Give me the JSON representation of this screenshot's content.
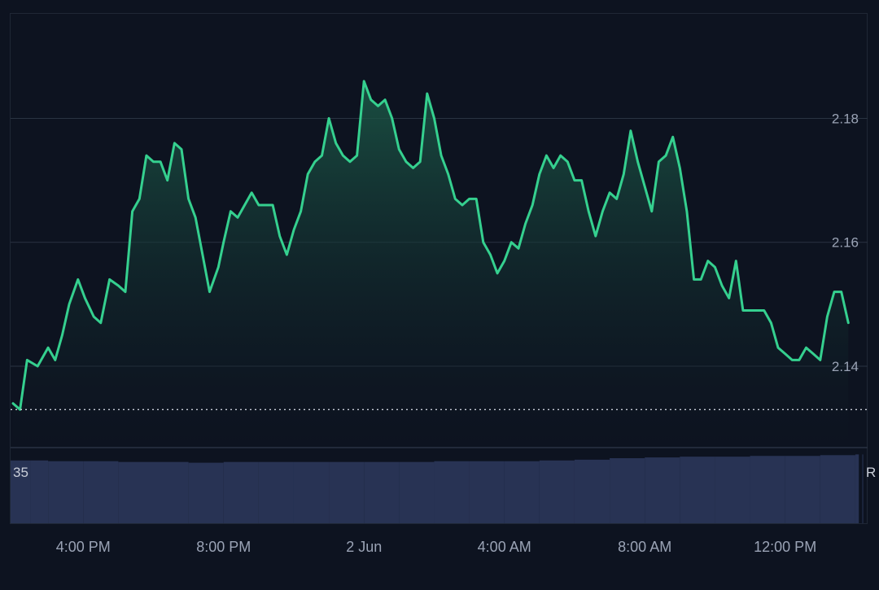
{
  "colors": {
    "background": "#0d1320",
    "line": "#35d08f",
    "area_top": "#1c5a48",
    "area_bottom": "#0d1320",
    "grid": "#2a3342",
    "volume": "#283354",
    "axis_text": "#9aa3b5",
    "baseline": "#c9ced8",
    "volume_label": "#c9ced8"
  },
  "chart_data": {
    "type": "area",
    "title": "",
    "xlabel": "",
    "ylabel": "",
    "ylim": [
      2.127,
      2.197
    ],
    "y_ticks": [
      2.14,
      2.16,
      2.18
    ],
    "y_tick_labels": [
      "2.14",
      "2.16",
      "2.18"
    ],
    "grid": true,
    "baseline_value": 2.133,
    "x_ticks": [
      {
        "hour": 4,
        "label": "4:00 PM"
      },
      {
        "hour": 8,
        "label": "8:00 PM"
      },
      {
        "hour": 12,
        "label": "2 Jun"
      },
      {
        "hour": 16,
        "label": "4:00 AM"
      },
      {
        "hour": 20,
        "label": "8:00 AM"
      },
      {
        "hour": 24,
        "label": "12:00 PM"
      }
    ],
    "x_range_hours": [
      1.93,
      26.35
    ],
    "series": [
      {
        "points": [
          [
            2.0,
            2.134
          ],
          [
            2.2,
            2.133
          ],
          [
            2.4,
            2.141
          ],
          [
            2.7,
            2.14
          ],
          [
            3.0,
            2.143
          ],
          [
            3.2,
            2.141
          ],
          [
            3.4,
            2.145
          ],
          [
            3.6,
            2.15
          ],
          [
            3.85,
            2.154
          ],
          [
            4.05,
            2.151
          ],
          [
            4.3,
            2.148
          ],
          [
            4.5,
            2.147
          ],
          [
            4.75,
            2.154
          ],
          [
            5.0,
            2.153
          ],
          [
            5.2,
            2.152
          ],
          [
            5.4,
            2.165
          ],
          [
            5.6,
            2.167
          ],
          [
            5.8,
            2.174
          ],
          [
            6.0,
            2.173
          ],
          [
            6.2,
            2.173
          ],
          [
            6.4,
            2.17
          ],
          [
            6.6,
            2.176
          ],
          [
            6.8,
            2.175
          ],
          [
            7.0,
            2.167
          ],
          [
            7.2,
            2.164
          ],
          [
            7.4,
            2.158
          ],
          [
            7.6,
            2.152
          ],
          [
            7.85,
            2.156
          ],
          [
            8.0,
            2.16
          ],
          [
            8.2,
            2.165
          ],
          [
            8.4,
            2.164
          ],
          [
            8.6,
            2.166
          ],
          [
            8.8,
            2.168
          ],
          [
            9.0,
            2.166
          ],
          [
            9.2,
            2.166
          ],
          [
            9.4,
            2.166
          ],
          [
            9.6,
            2.161
          ],
          [
            9.8,
            2.158
          ],
          [
            10.0,
            2.162
          ],
          [
            10.2,
            2.165
          ],
          [
            10.4,
            2.171
          ],
          [
            10.6,
            2.173
          ],
          [
            10.8,
            2.174
          ],
          [
            11.0,
            2.18
          ],
          [
            11.2,
            2.176
          ],
          [
            11.4,
            2.174
          ],
          [
            11.6,
            2.173
          ],
          [
            11.8,
            2.174
          ],
          [
            12.0,
            2.186
          ],
          [
            12.2,
            2.183
          ],
          [
            12.4,
            2.182
          ],
          [
            12.6,
            2.183
          ],
          [
            12.8,
            2.18
          ],
          [
            13.0,
            2.175
          ],
          [
            13.2,
            2.173
          ],
          [
            13.4,
            2.172
          ],
          [
            13.6,
            2.173
          ],
          [
            13.8,
            2.184
          ],
          [
            14.0,
            2.18
          ],
          [
            14.2,
            2.174
          ],
          [
            14.4,
            2.171
          ],
          [
            14.6,
            2.167
          ],
          [
            14.8,
            2.166
          ],
          [
            15.0,
            2.167
          ],
          [
            15.2,
            2.167
          ],
          [
            15.4,
            2.16
          ],
          [
            15.6,
            2.158
          ],
          [
            15.8,
            2.155
          ],
          [
            16.0,
            2.157
          ],
          [
            16.2,
            2.16
          ],
          [
            16.4,
            2.159
          ],
          [
            16.6,
            2.163
          ],
          [
            16.8,
            2.166
          ],
          [
            17.0,
            2.171
          ],
          [
            17.2,
            2.174
          ],
          [
            17.4,
            2.172
          ],
          [
            17.6,
            2.174
          ],
          [
            17.8,
            2.173
          ],
          [
            18.0,
            2.17
          ],
          [
            18.2,
            2.17
          ],
          [
            18.4,
            2.165
          ],
          [
            18.6,
            2.161
          ],
          [
            18.8,
            2.165
          ],
          [
            19.0,
            2.168
          ],
          [
            19.2,
            2.167
          ],
          [
            19.4,
            2.171
          ],
          [
            19.6,
            2.178
          ],
          [
            19.8,
            2.173
          ],
          [
            20.0,
            2.169
          ],
          [
            20.2,
            2.165
          ],
          [
            20.4,
            2.173
          ],
          [
            20.6,
            2.174
          ],
          [
            20.8,
            2.177
          ],
          [
            21.0,
            2.172
          ],
          [
            21.2,
            2.165
          ],
          [
            21.4,
            2.154
          ],
          [
            21.6,
            2.154
          ],
          [
            21.8,
            2.157
          ],
          [
            22.0,
            2.156
          ],
          [
            22.2,
            2.153
          ],
          [
            22.4,
            2.151
          ],
          [
            22.6,
            2.157
          ],
          [
            22.8,
            2.149
          ],
          [
            23.0,
            2.149
          ],
          [
            23.2,
            2.149
          ],
          [
            23.4,
            2.149
          ],
          [
            23.6,
            2.147
          ],
          [
            23.8,
            2.143
          ],
          [
            24.0,
            2.142
          ],
          [
            24.2,
            2.141
          ],
          [
            24.4,
            2.141
          ],
          [
            24.6,
            2.143
          ],
          [
            24.8,
            2.142
          ],
          [
            25.0,
            2.141
          ],
          [
            25.2,
            2.148
          ],
          [
            25.4,
            2.152
          ],
          [
            25.6,
            2.152
          ],
          [
            25.8,
            2.147
          ]
        ]
      }
    ],
    "volume": {
      "label": "35",
      "right_label": "R",
      "max": 100,
      "points": [
        [
          1.93,
          83
        ],
        [
          2.5,
          83
        ],
        [
          3.0,
          82
        ],
        [
          4.0,
          82
        ],
        [
          5.0,
          81
        ],
        [
          6.0,
          81
        ],
        [
          7.0,
          80
        ],
        [
          8.0,
          81
        ],
        [
          9.0,
          81
        ],
        [
          10.0,
          81
        ],
        [
          11.0,
          81
        ],
        [
          12.0,
          81
        ],
        [
          13.0,
          81
        ],
        [
          14.0,
          82
        ],
        [
          15.0,
          82
        ],
        [
          16.0,
          82
        ],
        [
          17.0,
          83
        ],
        [
          18.0,
          84
        ],
        [
          19.0,
          86
        ],
        [
          20.0,
          87
        ],
        [
          21.0,
          88
        ],
        [
          22.0,
          88
        ],
        [
          23.0,
          89
        ],
        [
          24.0,
          89
        ],
        [
          25.0,
          90
        ],
        [
          26.0,
          91
        ],
        [
          26.1,
          0
        ],
        [
          26.2,
          91
        ]
      ]
    }
  }
}
